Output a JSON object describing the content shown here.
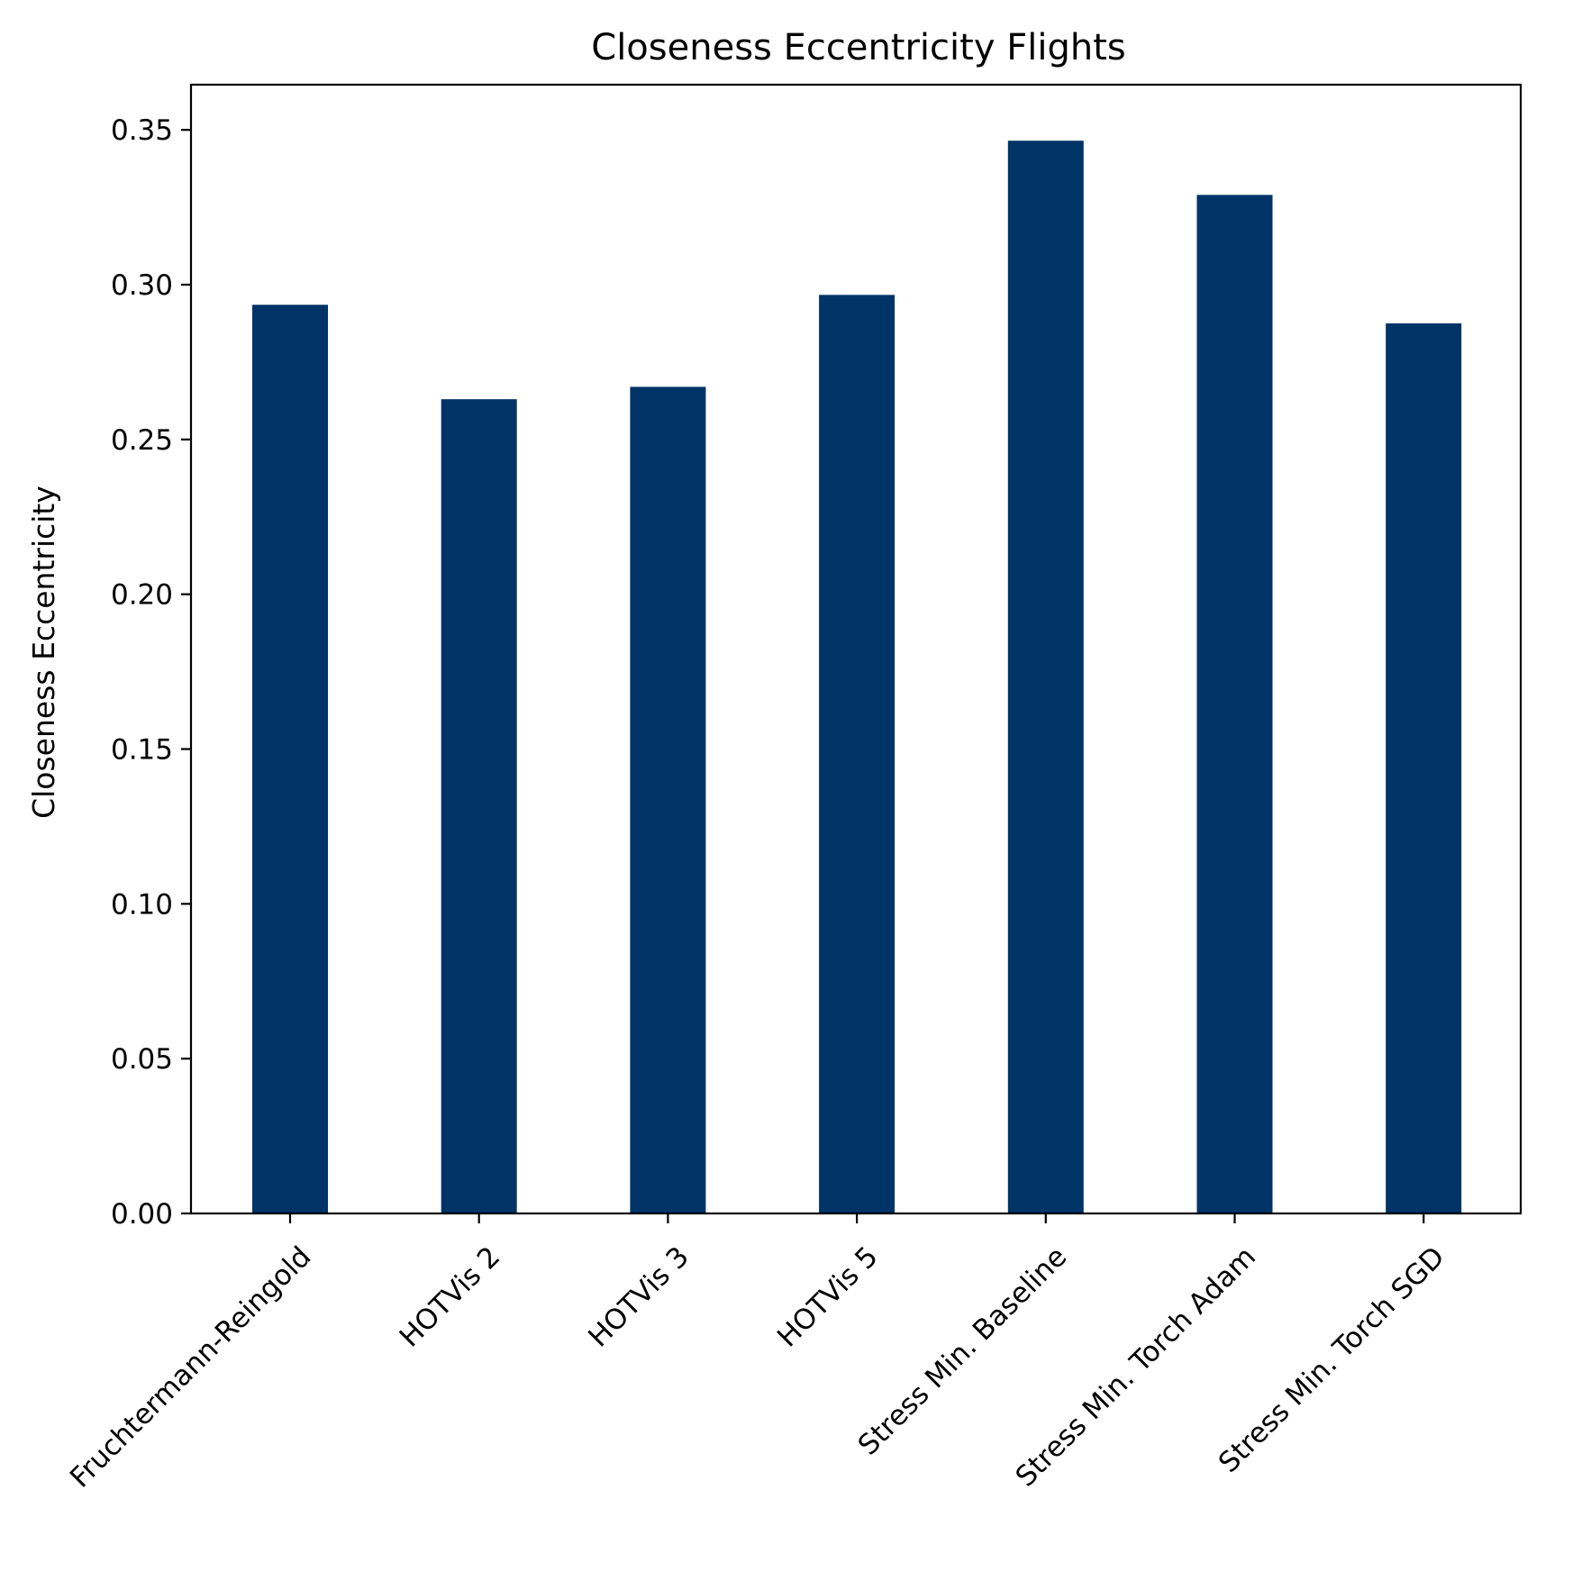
{
  "chart_data": {
    "type": "bar",
    "title": "Closeness Eccentricity Flights",
    "xlabel": "",
    "ylabel": "Closeness Eccentricity",
    "categories": [
      "Fruchtermann-Reingold",
      "HOTVis 2",
      "HOTVis 3",
      "HOTVis 5",
      "Stress Min. Baseline",
      "Stress Min. Torch Adam",
      "Stress Min. Torch SGD"
    ],
    "values": [
      0.2935,
      0.263,
      0.267,
      0.2967,
      0.3465,
      0.329,
      0.2875
    ],
    "ylim": [
      0,
      0.3646
    ],
    "yticks": [
      "0.00",
      "0.05",
      "0.10",
      "0.15",
      "0.20",
      "0.25",
      "0.30",
      "0.35"
    ],
    "bar_color": "#003366",
    "grid": false,
    "legend": "none"
  }
}
